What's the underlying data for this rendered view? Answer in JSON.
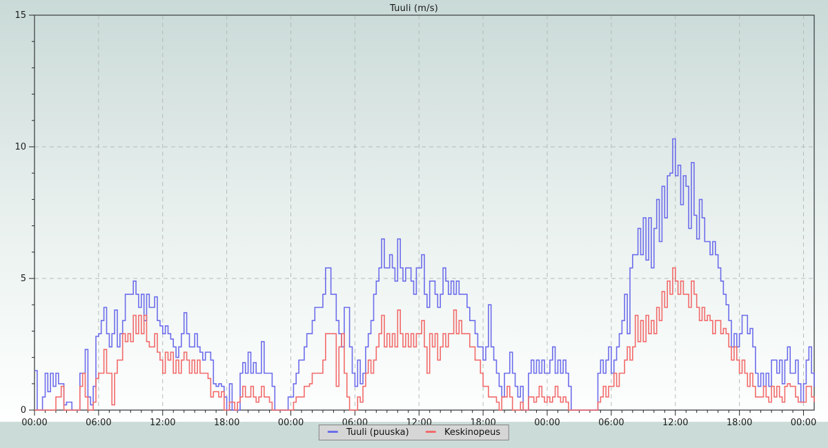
{
  "title": "Tuuli (m/s)",
  "legend": {
    "items": [
      {
        "label": "Tuuli (puuska)",
        "color": "#6c6ceb"
      },
      {
        "label": "Keskinopeus",
        "color": "#f26a6a"
      }
    ]
  },
  "colors": {
    "plot_border": "#54595b",
    "grid": "#b3bcba",
    "tick": "#222222",
    "tick_label": "#1c1c1c",
    "background_top": "#c9dad7",
    "background_bottom_band": "#cbdcd8",
    "legend_background": "#d6d6d6"
  },
  "chart_data": {
    "type": "line",
    "subtype": "step",
    "title": "Tuuli (m/s)",
    "xlabel": "",
    "ylabel": "m/s",
    "ylim": [
      0,
      15
    ],
    "y_tick_labels": [
      "0",
      "5",
      "10",
      "15"
    ],
    "y_major_tick_every": 5,
    "y_minor_tick_every": 1,
    "x_hours_span": 73,
    "step_hours": 0.25,
    "x_major_tick_every_hours": 6,
    "x_minor_tick_every_hours": 1,
    "x_tick_labels": [
      "00:00",
      "06:00",
      "12:00",
      "18:00",
      "00:00",
      "06:00",
      "12:00",
      "18:00",
      "00:00",
      "06:00",
      "12:00",
      "18:00",
      "00:00"
    ],
    "grid": "dashed",
    "legend_position": "bottom-center",
    "series": [
      {
        "name": "Tuuli (puuska)",
        "color": "#6c6ceb",
        "values": [
          1.5,
          0,
          0,
          0.5,
          1.4,
          0.7,
          1.4,
          0.9,
          1.4,
          1,
          1,
          0.2,
          0.3,
          0.3,
          0,
          0,
          0,
          1.4,
          1.4,
          2.3,
          0.5,
          0.2,
          0.9,
          2.8,
          2.9,
          3.4,
          3.9,
          2.9,
          2.4,
          2.9,
          3.8,
          2.4,
          2.9,
          3.4,
          4.4,
          4.4,
          4.4,
          4.9,
          4.4,
          3.9,
          4.4,
          3.4,
          4.4,
          3.9,
          3.9,
          4.3,
          3.4,
          3.2,
          2.9,
          3.2,
          2.9,
          2.7,
          2.4,
          2,
          2.4,
          2.9,
          3.7,
          2.9,
          2.4,
          2.4,
          2.9,
          2.4,
          2.2,
          1.9,
          2.2,
          2.2,
          1.9,
          1,
          0.9,
          1,
          0.9,
          0.5,
          0,
          1,
          0,
          0,
          0,
          1.4,
          1.8,
          1.4,
          2.2,
          1.4,
          1.8,
          1.4,
          1.4,
          2.6,
          1.4,
          1.4,
          1.4,
          0.9,
          0,
          0,
          0,
          0,
          0,
          0.5,
          0.5,
          1,
          1.4,
          1.9,
          1.9,
          2.4,
          2.9,
          2.9,
          3.4,
          3.9,
          3.9,
          3.9,
          4.4,
          5.4,
          5.4,
          4.4,
          4.4,
          3.4,
          2.9,
          2.4,
          3.9,
          3.9,
          2.4,
          1.4,
          0.9,
          1.9,
          1,
          1.4,
          2.4,
          2.9,
          3.4,
          4.4,
          4.9,
          5.4,
          6.5,
          5.4,
          5.4,
          5.9,
          5.4,
          4.9,
          6.5,
          5.4,
          4.9,
          5.4,
          5.4,
          4.9,
          4.4,
          5.4,
          5.4,
          5.9,
          4.4,
          3.9,
          4.9,
          4.9,
          4.4,
          3.9,
          4.4,
          5.4,
          4.9,
          4.4,
          4.9,
          4.4,
          4.9,
          4.4,
          4.4,
          4.4,
          3.9,
          3.4,
          3.4,
          2.9,
          2.4,
          2.4,
          1.9,
          2.4,
          4,
          2.4,
          1.9,
          1.4,
          0.9,
          0.5,
          1.4,
          1.4,
          2.2,
          1.4,
          0.9,
          0.5,
          0.9,
          0,
          0,
          1.4,
          1.9,
          1.4,
          1.9,
          1.4,
          1.9,
          1.4,
          1.4,
          1.9,
          2.4,
          1.4,
          1.9,
          1.4,
          1.9,
          1.4,
          0.9,
          0,
          0,
          0,
          0,
          0,
          0,
          0,
          0,
          0,
          0,
          1.4,
          1.9,
          1.4,
          1.9,
          2.4,
          1.4,
          1.9,
          2.4,
          2.9,
          3.4,
          4.4,
          2.9,
          5.4,
          5.9,
          5.9,
          6.9,
          5.9,
          7.3,
          5.7,
          7.3,
          5.4,
          6.9,
          8,
          6.4,
          8.5,
          7.3,
          8.9,
          9,
          10.3,
          8.9,
          9.3,
          7.8,
          8.9,
          8.5,
          6.9,
          9.4,
          7.4,
          6.5,
          8,
          7.3,
          6.4,
          6.4,
          5.9,
          6.4,
          5.9,
          5.4,
          4.9,
          4.4,
          4,
          3.4,
          2.4,
          2.9,
          2.4,
          2.9,
          3.6,
          3.6,
          2.9,
          3.1,
          2.4,
          1.4,
          0.9,
          1.4,
          0.9,
          1.4,
          0.9,
          1.9,
          1.9,
          1.4,
          1.9,
          1,
          1.9,
          2.4,
          1.4,
          1.4,
          1.9,
          1,
          0.3,
          1,
          1.9,
          2.4,
          1.4,
          0.9
        ]
      },
      {
        "name": "Keskinopeus",
        "color": "#f26a6a",
        "values": [
          0,
          0,
          0,
          0,
          0,
          0,
          0,
          0,
          0.5,
          0.5,
          0.9,
          0,
          0,
          0,
          0,
          0,
          0,
          0.9,
          1.4,
          0.5,
          0,
          0,
          0.3,
          1.2,
          1.4,
          1.4,
          2.3,
          1.4,
          1.4,
          0.2,
          1.4,
          1.9,
          1.9,
          2.9,
          2.6,
          2.9,
          2.6,
          3.6,
          2.9,
          3.6,
          2.9,
          3.6,
          2.6,
          2.4,
          2.4,
          2.9,
          2.2,
          1.9,
          1.4,
          2.2,
          1.9,
          2.2,
          1.4,
          1.9,
          1.4,
          1.9,
          2.2,
          1.9,
          1.4,
          1.9,
          1.4,
          1.9,
          1.4,
          1.4,
          1.4,
          1.2,
          0.5,
          0.7,
          0.7,
          0.5,
          0.7,
          0,
          0,
          0.3,
          0.3,
          0,
          0.3,
          0.5,
          0.9,
          0.5,
          0.5,
          0.9,
          0.5,
          0.3,
          0.5,
          0.9,
          0.5,
          0.5,
          0.3,
          0,
          0,
          0,
          0,
          0,
          0,
          0,
          0,
          0.3,
          0.5,
          0.5,
          0.5,
          0.9,
          0.9,
          1,
          1.4,
          1.4,
          1.4,
          1.4,
          1.9,
          2.9,
          2.9,
          2.9,
          2.9,
          0.9,
          2.4,
          2.9,
          1.4,
          0.5,
          0,
          0,
          0,
          0.5,
          0.3,
          0.9,
          1.4,
          1.9,
          1.4,
          1.9,
          2.4,
          2.9,
          3.6,
          2.4,
          2.9,
          2.4,
          2.9,
          2.4,
          3.8,
          2.9,
          2.4,
          2.9,
          2.4,
          2.9,
          2.4,
          2.9,
          2.9,
          3.4,
          2.4,
          1.4,
          2.9,
          2.4,
          2.9,
          1.9,
          2.4,
          2.9,
          2.4,
          2.9,
          2.9,
          3.8,
          2.9,
          3.4,
          2.9,
          2.9,
          2.9,
          2.4,
          2.4,
          1.9,
          1.9,
          1.4,
          0.9,
          0.9,
          0.5,
          0.5,
          0.5,
          0.3,
          0,
          0.5,
          0.5,
          0.9,
          0.5,
          0,
          0,
          0,
          0.3,
          0,
          0,
          0.5,
          0.5,
          0.3,
          0.5,
          0.9,
          0.5,
          0.3,
          0.5,
          0.3,
          0.5,
          0.9,
          0.5,
          0.3,
          0.5,
          0.3,
          0,
          0,
          0,
          0,
          0,
          0,
          0,
          0,
          0,
          0,
          0,
          0.3,
          0.5,
          0.9,
          0.5,
          0.9,
          0.9,
          1.4,
          0.9,
          1.4,
          1.4,
          1.9,
          2.4,
          1.9,
          2.4,
          3.6,
          2.6,
          3.4,
          2.6,
          3.6,
          2.9,
          3.4,
          2.9,
          3.9,
          3.4,
          4.5,
          3.9,
          4.9,
          4.4,
          5.4,
          4.9,
          4.4,
          4.9,
          4.4,
          4.4,
          3.9,
          4.9,
          4.4,
          3.9,
          3.4,
          3.9,
          3.4,
          3.6,
          3.4,
          2.9,
          3.4,
          3.4,
          2.9,
          3.1,
          2.9,
          2.4,
          1.9,
          2.4,
          1.9,
          1.4,
          1.9,
          1.4,
          0.9,
          1.4,
          0.9,
          0.5,
          0.5,
          0.5,
          0.9,
          0.5,
          0.3,
          0.9,
          0.5,
          0.9,
          0.5,
          0.3,
          0.9,
          1,
          0.9,
          0.9,
          0.5,
          0.3,
          0.3,
          0.3,
          0.9,
          0.9,
          0.5,
          0.3
        ]
      }
    ]
  }
}
